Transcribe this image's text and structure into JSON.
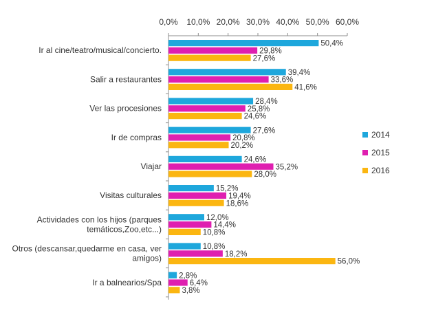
{
  "chart_data": {
    "type": "bar",
    "orientation": "horizontal",
    "title": "",
    "xlabel": "",
    "ylabel": "",
    "xlim": [
      0,
      60
    ],
    "x_ticks": [
      "0,0%",
      "10,0%",
      "20,0%",
      "30,0%",
      "40,0%",
      "50,0%",
      "60,0%"
    ],
    "x_tick_values": [
      0,
      10,
      20,
      30,
      40,
      50,
      60
    ],
    "x_axis_position": "top",
    "grid": false,
    "legend_position": "right",
    "categories": [
      [
        "Ir al cine/teatro/musical/concierto."
      ],
      [
        "Salir a restaurantes"
      ],
      [
        "Ver las procesiones"
      ],
      [
        "Ir de compras"
      ],
      [
        "Viajar"
      ],
      [
        "Visitas culturales"
      ],
      [
        "Actividades con los hijos (parques",
        "temáticos,Zoo,etc...)"
      ],
      [
        "Otros (descansar,quedarme en casa, ver",
        "amigos)"
      ],
      [
        "Ir a balnearios/Spa"
      ]
    ],
    "series": [
      {
        "name": "2014",
        "color": "#1ea7dc",
        "values": [
          50.4,
          39.4,
          28.4,
          27.6,
          24.6,
          15.2,
          12.0,
          10.8,
          2.8
        ],
        "labels": [
          "50,4%",
          "39,4%",
          "28,4%",
          "27,6%",
          "24,6%",
          "15,2%",
          "12,0%",
          "10,8%",
          "2,8%"
        ]
      },
      {
        "name": "2015",
        "color": "#df1fb0",
        "values": [
          29.8,
          33.6,
          25.8,
          20.8,
          35.2,
          19.4,
          14.4,
          18.2,
          6.4
        ],
        "labels": [
          "29,8%",
          "33,6%",
          "25,8%",
          "20,8%",
          "35,2%",
          "19,4%",
          "14,4%",
          "18,2%",
          "6,4%"
        ]
      },
      {
        "name": "2016",
        "color": "#fbb611",
        "values": [
          27.6,
          41.6,
          24.6,
          20.2,
          28.0,
          18.6,
          10.8,
          56.0,
          3.8
        ],
        "labels": [
          "27,6%",
          "41,6%",
          "24,6%",
          "20,2%",
          "28,0%",
          "18,6%",
          "10,8%",
          "56,0%",
          "3,8%"
        ]
      }
    ]
  }
}
